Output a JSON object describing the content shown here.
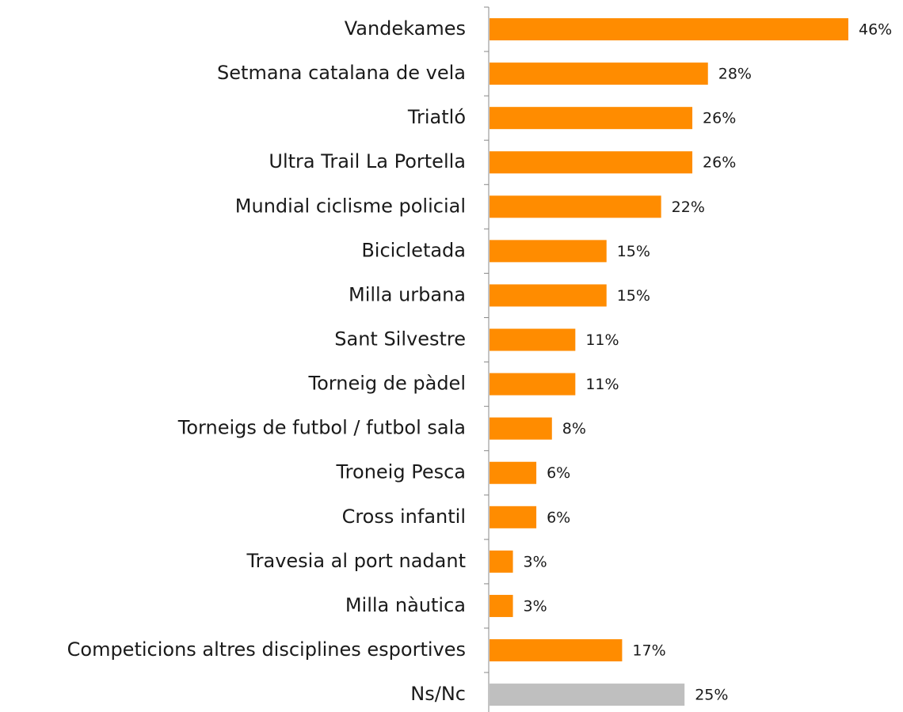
{
  "chart_data": {
    "type": "bar",
    "orientation": "horizontal",
    "categories": [
      "Vandekames",
      "Setmana catalana de vela",
      "Triatló",
      "Ultra Trail La Portella",
      "Mundial ciclisme policial",
      "Bicicletada",
      "Milla urbana",
      "Sant Silvestre",
      "Torneig de pàdel",
      "Torneigs de futbol / futbol sala",
      "Troneig Pesca",
      "Cross infantil",
      "Travesia al port nadant",
      "Milla nàutica",
      "Competicions altres disciplines esportives",
      "Ns/Nc"
    ],
    "values": [
      46,
      28,
      26,
      26,
      22,
      15,
      15,
      11,
      11,
      8,
      6,
      6,
      3,
      3,
      17,
      25
    ],
    "value_labels": [
      "46%",
      "28%",
      "26%",
      "26%",
      "22%",
      "15%",
      "15%",
      "11%",
      "11%",
      "8%",
      "6%",
      "6%",
      "3%",
      "3%",
      "17%",
      "25%"
    ],
    "colors": [
      "#ff8c00",
      "#ff8c00",
      "#ff8c00",
      "#ff8c00",
      "#ff8c00",
      "#ff8c00",
      "#ff8c00",
      "#ff8c00",
      "#ff8c00",
      "#ff8c00",
      "#ff8c00",
      "#ff8c00",
      "#ff8c00",
      "#ff8c00",
      "#ff8c00",
      "#bfbfbf"
    ]
  }
}
